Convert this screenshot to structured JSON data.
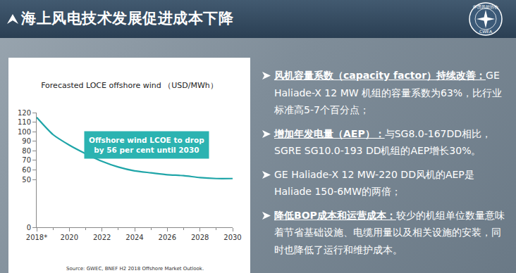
{
  "header": {
    "title": "海上风电技术发展促进成本下降",
    "logo": {
      "top": "中国风能协会",
      "bottom": "CWEA"
    }
  },
  "chart_data": {
    "type": "line",
    "title": "Forecasted LOCE offshore wind （USD/MWh）",
    "x": [
      2018,
      2019,
      2020,
      2021,
      2022,
      2023,
      2024,
      2025,
      2026,
      2027,
      2028,
      2029,
      2030
    ],
    "values": [
      115,
      97,
      86,
      77,
      69,
      63,
      59,
      57,
      55,
      54,
      52,
      51,
      51
    ],
    "color": "#1fa5a8",
    "xlim": [
      2018,
      2030
    ],
    "xticks": [
      {
        "value": 2018,
        "label": "2018*"
      },
      2020,
      2022,
      2024,
      2026,
      2028,
      2030
    ],
    "ylim": [
      0,
      120
    ],
    "yticks": [
      0,
      50,
      60,
      70,
      80,
      90,
      100,
      110,
      120
    ],
    "grid": false,
    "annotation_lines": [
      "Offshore wind LCOE to drop",
      "by 56 per cent until 2030"
    ],
    "annotation_color": "#2bb3b1",
    "source": "Source: GWEC, BNEF H2 2018 Offshore Market Outlook."
  },
  "bullets": [
    {
      "heading": "风机容量系数（capacity factor）持续改善：",
      "text": "GE Haliade-X 12 MW 机组的容量系数为63%，比行业标准高5-7个百分点；"
    },
    {
      "heading": "增加年发电量（AEP）：",
      "text": "与SG8.0-167DD相比，SGRE SG10.0-193 DD机组的AEP增长30%。"
    },
    {
      "text": "GE Haliade-X 12 MW-220 DD风机的AEP是Haliade 150-6MW的两倍；"
    },
    {
      "heading": "降低BOP成本和运营成本：",
      "text": "较少的机组单位数量意味着节省基础设施、电缆用量以及相关设施的安装，同时也降低了运行和维护成本。"
    }
  ]
}
